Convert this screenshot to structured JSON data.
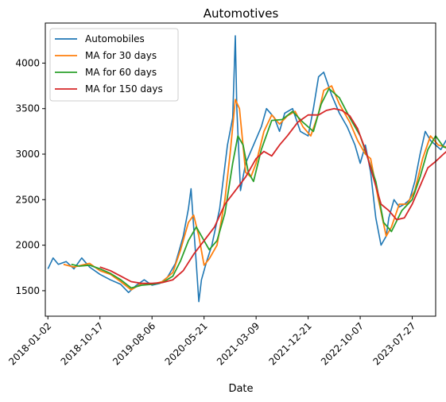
{
  "chart_data": {
    "type": "line",
    "title": "Automotives",
    "xlabel": "Date",
    "ylabel": "",
    "x_tick_labels": [
      "2018-01-02",
      "2018-10-17",
      "2019-08-06",
      "2020-05-21",
      "2021-03-09",
      "2021-12-21",
      "2022-10-07",
      "2023-07-27"
    ],
    "y_ticks": [
      1500,
      2000,
      2500,
      3000,
      3500,
      4000
    ],
    "ylim": [
      1220,
      4440
    ],
    "xlim": [
      -0.05,
      7.45
    ],
    "legend_position": "top-left",
    "grid": false,
    "series": [
      {
        "name": "Automobiles",
        "color": "#1f77b4",
        "points": [
          [
            0,
            1740
          ],
          [
            0.1,
            1860
          ],
          [
            0.2,
            1790
          ],
          [
            0.35,
            1820
          ],
          [
            0.5,
            1740
          ],
          [
            0.65,
            1860
          ],
          [
            0.8,
            1760
          ],
          [
            1.0,
            1680
          ],
          [
            1.2,
            1620
          ],
          [
            1.4,
            1570
          ],
          [
            1.55,
            1480
          ],
          [
            1.7,
            1560
          ],
          [
            1.85,
            1620
          ],
          [
            2.0,
            1560
          ],
          [
            2.15,
            1580
          ],
          [
            2.3,
            1650
          ],
          [
            2.45,
            1800
          ],
          [
            2.6,
            2100
          ],
          [
            2.7,
            2400
          ],
          [
            2.75,
            2620
          ],
          [
            2.8,
            2200
          ],
          [
            2.85,
            1800
          ],
          [
            2.9,
            1380
          ],
          [
            2.95,
            1620
          ],
          [
            3.05,
            1820
          ],
          [
            3.15,
            2000
          ],
          [
            3.3,
            2400
          ],
          [
            3.45,
            3100
          ],
          [
            3.55,
            3400
          ],
          [
            3.6,
            4300
          ],
          [
            3.63,
            3500
          ],
          [
            3.7,
            2600
          ],
          [
            3.8,
            2900
          ],
          [
            3.95,
            3100
          ],
          [
            4.1,
            3300
          ],
          [
            4.2,
            3500
          ],
          [
            4.35,
            3400
          ],
          [
            4.45,
            3250
          ],
          [
            4.55,
            3450
          ],
          [
            4.7,
            3500
          ],
          [
            4.85,
            3250
          ],
          [
            5.0,
            3200
          ],
          [
            5.1,
            3500
          ],
          [
            5.2,
            3850
          ],
          [
            5.3,
            3900
          ],
          [
            5.45,
            3650
          ],
          [
            5.6,
            3450
          ],
          [
            5.75,
            3300
          ],
          [
            5.9,
            3100
          ],
          [
            6.0,
            2900
          ],
          [
            6.1,
            3100
          ],
          [
            6.2,
            2800
          ],
          [
            6.3,
            2300
          ],
          [
            6.4,
            2000
          ],
          [
            6.5,
            2100
          ],
          [
            6.55,
            2300
          ],
          [
            6.65,
            2500
          ],
          [
            6.75,
            2420
          ],
          [
            6.85,
            2450
          ],
          [
            6.95,
            2500
          ],
          [
            7.05,
            2700
          ],
          [
            7.15,
            3000
          ],
          [
            7.25,
            3250
          ],
          [
            7.35,
            3150
          ],
          [
            7.45,
            3100
          ],
          [
            7.55,
            3050
          ],
          [
            7.65,
            3150
          ],
          [
            7.7,
            3180
          ]
        ]
      },
      {
        "name": "MA for 30 days",
        "color": "#ff7f0e",
        "points": [
          [
            0.3,
            1790
          ],
          [
            0.5,
            1760
          ],
          [
            0.65,
            1780
          ],
          [
            0.8,
            1800
          ],
          [
            1.0,
            1720
          ],
          [
            1.2,
            1680
          ],
          [
            1.4,
            1600
          ],
          [
            1.6,
            1510
          ],
          [
            1.8,
            1580
          ],
          [
            2.0,
            1570
          ],
          [
            2.2,
            1600
          ],
          [
            2.4,
            1700
          ],
          [
            2.55,
            1950
          ],
          [
            2.7,
            2250
          ],
          [
            2.8,
            2330
          ],
          [
            2.9,
            2100
          ],
          [
            3.0,
            1780
          ],
          [
            3.1,
            1850
          ],
          [
            3.25,
            2000
          ],
          [
            3.4,
            2500
          ],
          [
            3.5,
            3000
          ],
          [
            3.6,
            3600
          ],
          [
            3.68,
            3500
          ],
          [
            3.8,
            2800
          ],
          [
            3.9,
            2750
          ],
          [
            4.0,
            2900
          ],
          [
            4.15,
            3250
          ],
          [
            4.3,
            3430
          ],
          [
            4.45,
            3330
          ],
          [
            4.6,
            3420
          ],
          [
            4.75,
            3470
          ],
          [
            4.9,
            3300
          ],
          [
            5.05,
            3200
          ],
          [
            5.2,
            3450
          ],
          [
            5.3,
            3700
          ],
          [
            5.45,
            3750
          ],
          [
            5.6,
            3550
          ],
          [
            5.8,
            3350
          ],
          [
            5.95,
            3150
          ],
          [
            6.1,
            3000
          ],
          [
            6.2,
            2950
          ],
          [
            6.35,
            2500
          ],
          [
            6.5,
            2100
          ],
          [
            6.6,
            2200
          ],
          [
            6.75,
            2450
          ],
          [
            6.9,
            2450
          ],
          [
            7.05,
            2600
          ],
          [
            7.2,
            2950
          ],
          [
            7.35,
            3200
          ],
          [
            7.5,
            3100
          ],
          [
            7.65,
            3080
          ],
          [
            7.7,
            3050
          ]
        ]
      },
      {
        "name": "MA for 60 days",
        "color": "#2ca02c",
        "points": [
          [
            0.45,
            1790
          ],
          [
            0.6,
            1770
          ],
          [
            0.8,
            1780
          ],
          [
            1.0,
            1740
          ],
          [
            1.2,
            1690
          ],
          [
            1.4,
            1620
          ],
          [
            1.6,
            1530
          ],
          [
            1.8,
            1560
          ],
          [
            2.0,
            1570
          ],
          [
            2.2,
            1590
          ],
          [
            2.4,
            1660
          ],
          [
            2.55,
            1830
          ],
          [
            2.7,
            2050
          ],
          [
            2.85,
            2200
          ],
          [
            3.0,
            2050
          ],
          [
            3.1,
            1950
          ],
          [
            3.25,
            2050
          ],
          [
            3.4,
            2350
          ],
          [
            3.55,
            2900
          ],
          [
            3.65,
            3200
          ],
          [
            3.75,
            3100
          ],
          [
            3.85,
            2800
          ],
          [
            3.95,
            2700
          ],
          [
            4.1,
            3050
          ],
          [
            4.3,
            3370
          ],
          [
            4.5,
            3380
          ],
          [
            4.7,
            3470
          ],
          [
            4.9,
            3350
          ],
          [
            5.1,
            3250
          ],
          [
            5.25,
            3550
          ],
          [
            5.4,
            3720
          ],
          [
            5.6,
            3620
          ],
          [
            5.8,
            3400
          ],
          [
            6.0,
            3200
          ],
          [
            6.15,
            2950
          ],
          [
            6.3,
            2700
          ],
          [
            6.45,
            2250
          ],
          [
            6.6,
            2150
          ],
          [
            6.8,
            2380
          ],
          [
            7.0,
            2500
          ],
          [
            7.15,
            2750
          ],
          [
            7.3,
            3050
          ],
          [
            7.45,
            3200
          ],
          [
            7.6,
            3080
          ],
          [
            7.7,
            3060
          ]
        ]
      },
      {
        "name": "MA for 150 days",
        "color": "#d62728",
        "points": [
          [
            1.0,
            1760
          ],
          [
            1.2,
            1720
          ],
          [
            1.4,
            1660
          ],
          [
            1.6,
            1600
          ],
          [
            1.8,
            1580
          ],
          [
            2.0,
            1580
          ],
          [
            2.2,
            1590
          ],
          [
            2.4,
            1620
          ],
          [
            2.6,
            1720
          ],
          [
            2.8,
            1900
          ],
          [
            3.0,
            2050
          ],
          [
            3.2,
            2200
          ],
          [
            3.4,
            2450
          ],
          [
            3.6,
            2600
          ],
          [
            3.8,
            2750
          ],
          [
            4.0,
            2950
          ],
          [
            4.15,
            3030
          ],
          [
            4.3,
            2980
          ],
          [
            4.45,
            3100
          ],
          [
            4.6,
            3200
          ],
          [
            4.8,
            3350
          ],
          [
            5.0,
            3430
          ],
          [
            5.2,
            3430
          ],
          [
            5.35,
            3480
          ],
          [
            5.5,
            3500
          ],
          [
            5.65,
            3480
          ],
          [
            5.8,
            3420
          ],
          [
            5.95,
            3280
          ],
          [
            6.1,
            3050
          ],
          [
            6.25,
            2750
          ],
          [
            6.4,
            2450
          ],
          [
            6.55,
            2380
          ],
          [
            6.7,
            2280
          ],
          [
            6.85,
            2300
          ],
          [
            7.0,
            2450
          ],
          [
            7.15,
            2650
          ],
          [
            7.3,
            2850
          ],
          [
            7.45,
            2920
          ],
          [
            7.6,
            3000
          ],
          [
            7.7,
            3050
          ]
        ]
      }
    ]
  }
}
